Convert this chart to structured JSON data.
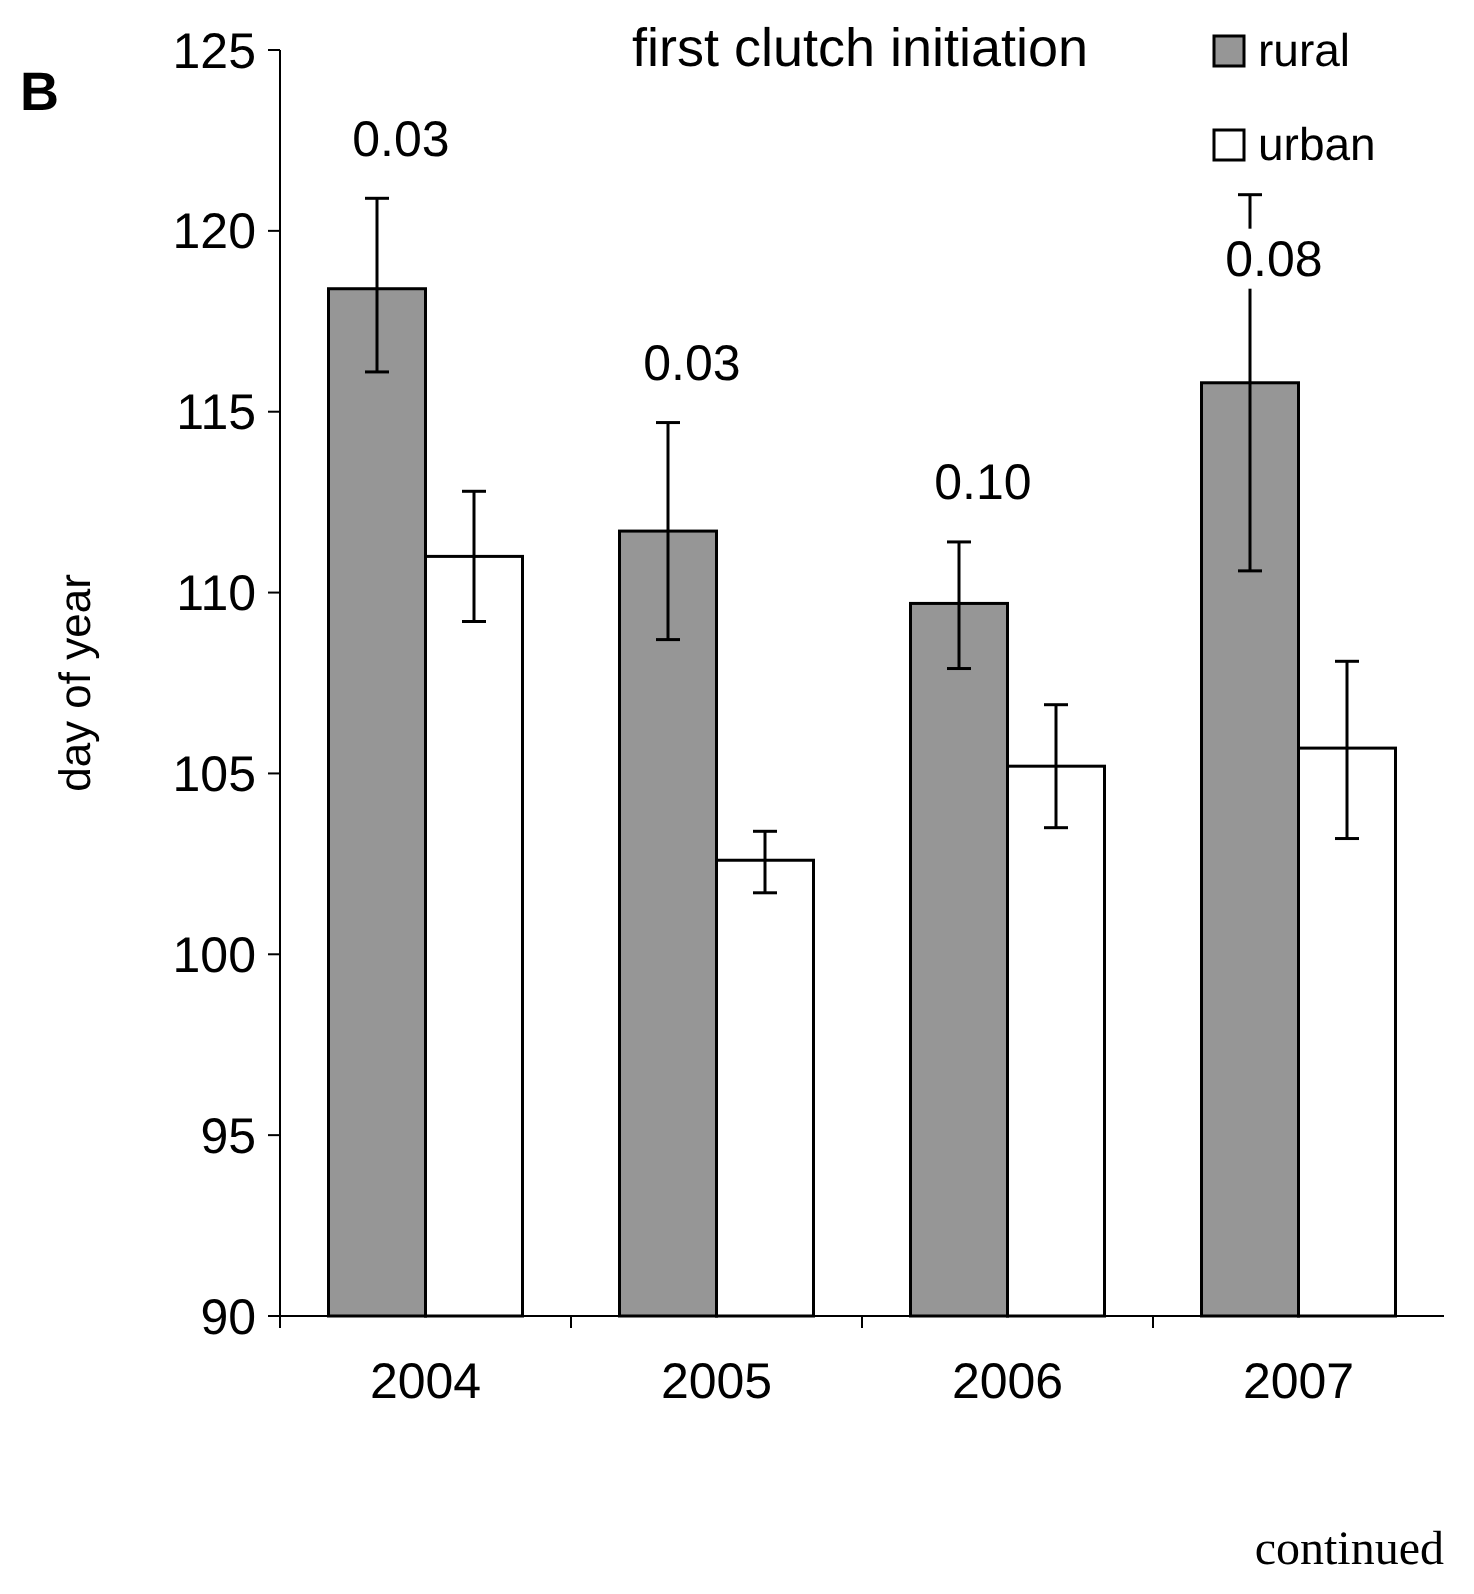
{
  "chart_data": {
    "type": "bar",
    "title": "first clutch initiation",
    "ylabel": "day of year",
    "categories": [
      "2004",
      "2005",
      "2006",
      "2007"
    ],
    "series": [
      {
        "name": "rural",
        "color": "#969696",
        "values": [
          118.4,
          111.7,
          109.7,
          115.8
        ],
        "errors": [
          [
            116.1,
            120.9
          ],
          [
            108.7,
            114.7
          ],
          [
            107.9,
            111.4
          ],
          [
            110.6,
            121.0
          ]
        ]
      },
      {
        "name": "urban",
        "color": "#ffffff",
        "values": [
          111.0,
          102.6,
          105.2,
          105.7
        ],
        "errors": [
          [
            109.2,
            112.8
          ],
          [
            101.7,
            103.4
          ],
          [
            103.5,
            106.9
          ],
          [
            103.2,
            108.1
          ]
        ]
      }
    ],
    "ylim": [
      90,
      125
    ],
    "yticks": [
      90,
      95,
      100,
      105,
      110,
      115,
      120,
      125
    ],
    "grid": false,
    "legend": "top right",
    "annotations": [
      "0.03",
      "0.03",
      "0.10",
      "0.08",
      "B",
      "continued"
    ]
  }
}
